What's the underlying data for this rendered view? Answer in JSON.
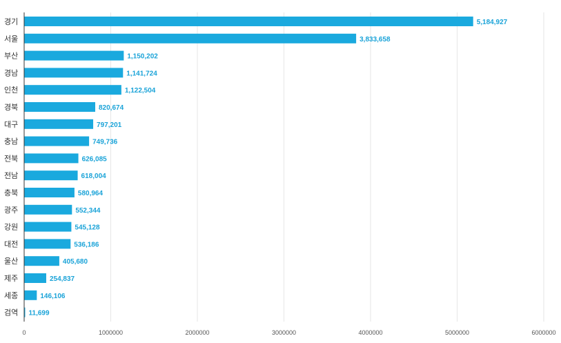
{
  "chart_data": {
    "type": "bar",
    "orientation": "horizontal",
    "title": "",
    "xlabel": "",
    "ylabel": "",
    "grid": true,
    "xlim": [
      0,
      6000000
    ],
    "x_ticks": [
      0,
      1000000,
      2000000,
      3000000,
      4000000,
      5000000,
      6000000
    ],
    "x_tick_labels": [
      "0",
      "1000000",
      "2000000",
      "3000000",
      "4000000",
      "5000000",
      "6000000"
    ],
    "categories": [
      "경기",
      "서울",
      "부산",
      "경남",
      "인천",
      "경북",
      "대구",
      "충남",
      "전북",
      "전남",
      "충북",
      "광주",
      "강원",
      "대전",
      "울산",
      "제주",
      "세종",
      "검역"
    ],
    "values": [
      5184927,
      3833658,
      1150202,
      1141724,
      1122504,
      820674,
      797201,
      749736,
      626085,
      618004,
      580964,
      552344,
      545128,
      536186,
      405680,
      254837,
      146106,
      11699
    ],
    "value_labels": [
      "5,184,927",
      "3,833,658",
      "1,150,202",
      "1,141,724",
      "1,122,504",
      "820,674",
      "797,201",
      "749,736",
      "626,085",
      "618,004",
      "580,964",
      "552,344",
      "545,128",
      "536,186",
      "405,680",
      "254,837",
      "146,106",
      "11,699"
    ],
    "colors": {
      "bar": "#1aa9de",
      "data_label": "#1aa3d8",
      "grid": "#e6e6e6",
      "axis": "#333333"
    }
  }
}
